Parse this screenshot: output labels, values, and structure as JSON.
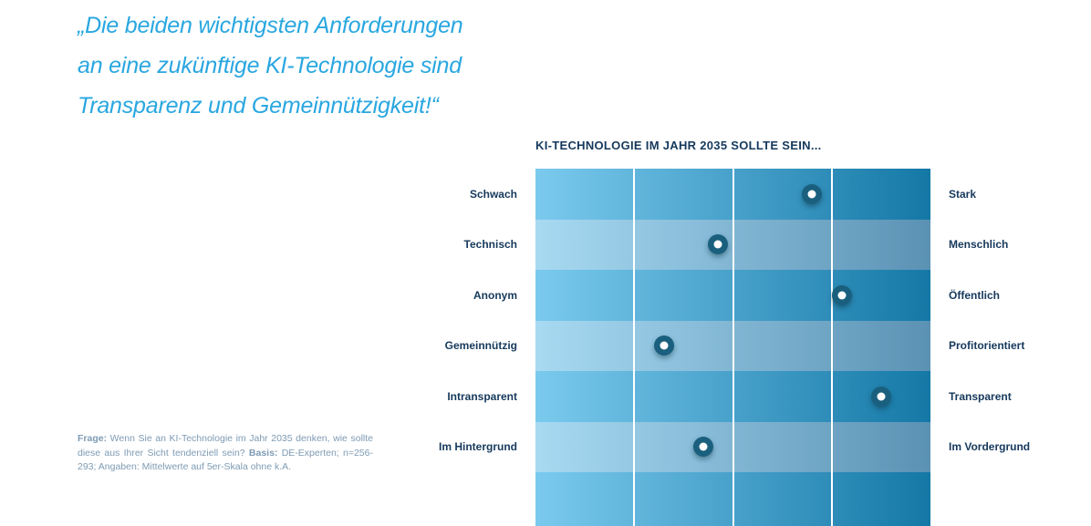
{
  "quote": {
    "lines": [
      "„Die beiden wichtigsten Anforderungen",
      "an eine zukünftige KI-Technologie sind",
      "Transparenz und Gemeinnützigkeit!“"
    ]
  },
  "chart": {
    "title": "KI-TECHNOLOGIE IM JAHR 2035 SOLLTE SEIN..."
  },
  "chart_data": {
    "type": "scatter",
    "subtype": "semantic-differential-dot-matrix",
    "title": "KI-TECHNOLOGIE IM JAHR 2035 SOLLTE SEIN...",
    "scale": {
      "min": 1,
      "max": 5,
      "columns": 4,
      "note": "Mittelwerte auf 5er-Skala"
    },
    "grid": {
      "labeled_rows": 6,
      "has_unlabeled_filler_row": true,
      "column_dividers_percent": [
        25,
        50,
        75
      ]
    },
    "rows": [
      {
        "left_label": "Schwach",
        "right_label": "Stark",
        "value": 3.8
      },
      {
        "left_label": "Technisch",
        "right_label": "Menschlich",
        "value": 2.85
      },
      {
        "left_label": "Anonym",
        "right_label": "Öffentlich",
        "value": 4.1
      },
      {
        "left_label": "Gemeinnützig",
        "right_label": "Profitorientiert",
        "value": 2.3
      },
      {
        "left_label": "Intransparent",
        "right_label": "Transparent",
        "value": 4.5
      },
      {
        "left_label": "Im Hintergrund",
        "right_label": "Im Vordergrund",
        "value": 2.7
      }
    ]
  },
  "footnote": {
    "segments": [
      {
        "text": "Frage:",
        "bold": true
      },
      {
        "text": " Wenn Sie an KI-Technologie im Jahr 2035 denken, wie sollte diese aus Ihrer Sicht tendenziell sein? ",
        "bold": false
      },
      {
        "text": "Basis:",
        "bold": true
      },
      {
        "text": " DE-Experten; n=256-293; Angaben: Mittelwerte auf 5er-Skala ohne k.A.",
        "bold": false
      }
    ]
  },
  "colors": {
    "quote_text": "#29A7E0",
    "heading_text": "#16395C",
    "label_text": "#16395C",
    "footnote_text": "#7E9BB4",
    "row_strong_gradient_start": "#7BCAEE",
    "row_strong_gradient_end": "#1478A6",
    "row_light_gradient_start": "#A8DAF2",
    "row_light_gradient_end": "#5B92B4",
    "dot_ring": "#1A607E",
    "dot_core": "#FFFFFF",
    "grid_divider": "#FFFFFF",
    "page_background": "#FFFFFF"
  }
}
